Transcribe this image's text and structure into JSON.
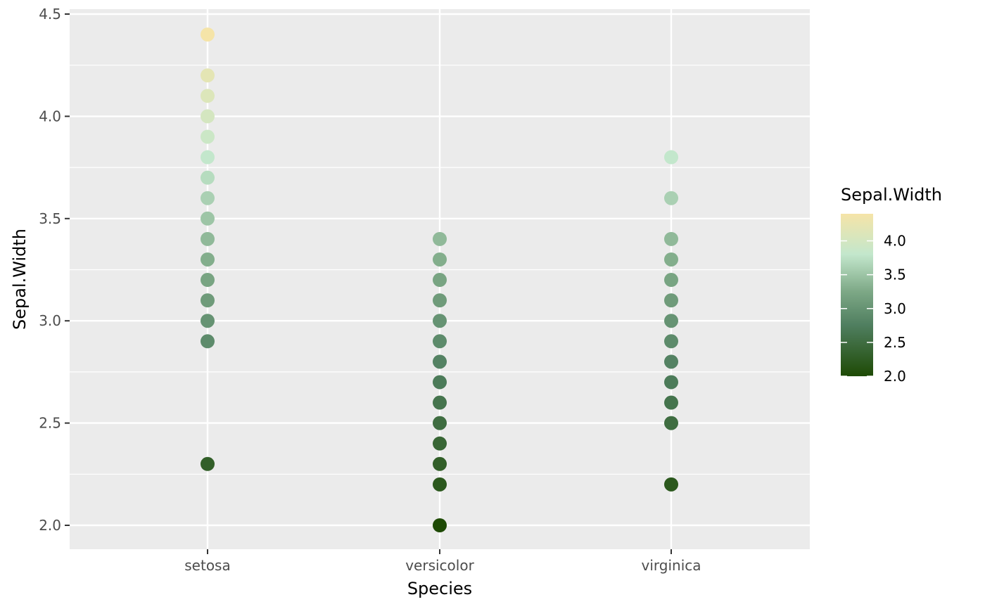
{
  "chart_data": {
    "type": "scatter",
    "xlabel": "Species",
    "ylabel": "Sepal.Width",
    "categories": [
      "setosa",
      "versicolor",
      "virginica"
    ],
    "ylim": [
      1.9,
      4.5
    ],
    "y_ticks": [
      "2.0",
      "2.5",
      "3.0",
      "3.5",
      "4.0",
      "4.5"
    ],
    "y_tick_values": [
      2.0,
      2.5,
      3.0,
      3.5,
      4.0,
      4.5
    ],
    "grid": true,
    "panel_background": "#ebebeb",
    "legend": {
      "title": "Sepal.Width",
      "placement": "right",
      "type": "colorbar",
      "range": [
        2.0,
        4.4
      ],
      "labels": [
        "4.0",
        "3.5",
        "3.0",
        "2.5",
        "2.0"
      ],
      "label_values": [
        4.0,
        3.5,
        3.0,
        2.5,
        2.0
      ],
      "color_stops": [
        {
          "value": 2.0,
          "color": "#1e4a05"
        },
        {
          "value": 2.75,
          "color": "#4f7e5f"
        },
        {
          "value": 3.25,
          "color": "#7da886"
        },
        {
          "value": 3.8,
          "color": "#c3e7cc"
        },
        {
          "value": 4.4,
          "color": "#f5e4a8"
        }
      ]
    },
    "series": [
      {
        "category": "setosa",
        "values": [
          2.3,
          2.9,
          3.0,
          3.1,
          3.2,
          3.3,
          3.4,
          3.5,
          3.6,
          3.7,
          3.8,
          3.9,
          4.0,
          4.1,
          4.2,
          4.4
        ]
      },
      {
        "category": "versicolor",
        "values": [
          2.0,
          2.2,
          2.3,
          2.4,
          2.5,
          2.6,
          2.7,
          2.8,
          2.9,
          3.0,
          3.1,
          3.2,
          3.3,
          3.4
        ]
      },
      {
        "category": "virginica",
        "values": [
          2.2,
          2.5,
          2.6,
          2.7,
          2.8,
          2.9,
          3.0,
          3.1,
          3.2,
          3.3,
          3.4,
          3.6,
          3.8
        ]
      }
    ]
  }
}
